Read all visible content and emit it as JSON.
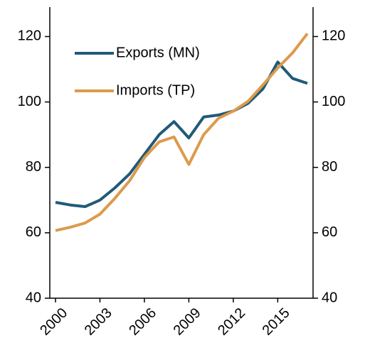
{
  "chart_data": {
    "type": "line",
    "categories": [
      "2000",
      null,
      null,
      "2003",
      null,
      null,
      "2006",
      null,
      null,
      "2009",
      null,
      null,
      "2012",
      null,
      null,
      "2015",
      null,
      null
    ],
    "series": [
      {
        "name": "Exports (MN)",
        "color": "#215a78",
        "values": [
          69.3,
          68.5,
          68.0,
          70.0,
          73.7,
          78.0,
          84.0,
          90.0,
          94.0,
          89.0,
          95.4,
          96.0,
          97.2,
          99.6,
          104.0,
          112.2,
          107.2,
          105.7
        ]
      },
      {
        "name": "Imports (TP)",
        "color": "#dd9a4c",
        "values": [
          60.7,
          61.7,
          63.0,
          65.7,
          70.5,
          75.9,
          83.0,
          87.8,
          89.3,
          80.9,
          90.0,
          95.0,
          97.2,
          100.2,
          105.2,
          110.4,
          115.0,
          120.9
        ]
      }
    ],
    "ylim": [
      40,
      129
    ],
    "yticks": [
      40,
      60,
      80,
      100,
      120
    ],
    "y2lim": [
      40,
      129
    ],
    "y2ticks": [
      40,
      60,
      80,
      100,
      120
    ],
    "legend": "upper left"
  }
}
